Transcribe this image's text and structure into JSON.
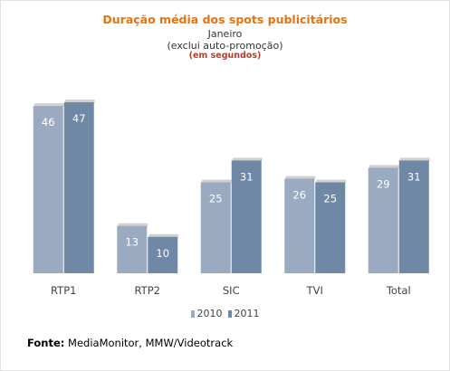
{
  "header": {
    "title": "Duração média dos spots publicitários",
    "subtitle_month": "Janeiro",
    "subtitle_note": "(exclui auto-promoção)",
    "unit": "(em segundos)"
  },
  "colors": {
    "title": "#e8730c",
    "unit": "#c0392b",
    "series_2010": "#9aaac1",
    "series_2011": "#6e88a6",
    "bar_label": "#ffffff",
    "axis_label": "#444444"
  },
  "chart_data": {
    "type": "bar",
    "title": "Duração média dos spots publicitários",
    "subtitle": "Janeiro (exclui auto-promoção)",
    "ylabel": "(em segundos)",
    "xlabel": "",
    "categories": [
      "RTP1",
      "RTP2",
      "SIC",
      "TVI",
      "Total"
    ],
    "series": [
      {
        "name": "2010",
        "values": [
          46,
          13,
          25,
          26,
          29
        ]
      },
      {
        "name": "2011",
        "values": [
          47,
          10,
          31,
          25,
          31
        ]
      }
    ],
    "ylim": [
      0,
      50
    ],
    "grid": false,
    "legend": "bottom"
  },
  "legend": {
    "items": [
      "2010",
      "2011"
    ]
  },
  "source": {
    "label": "Fonte:",
    "text": "MediaMonitor, MMW/Videotrack"
  }
}
